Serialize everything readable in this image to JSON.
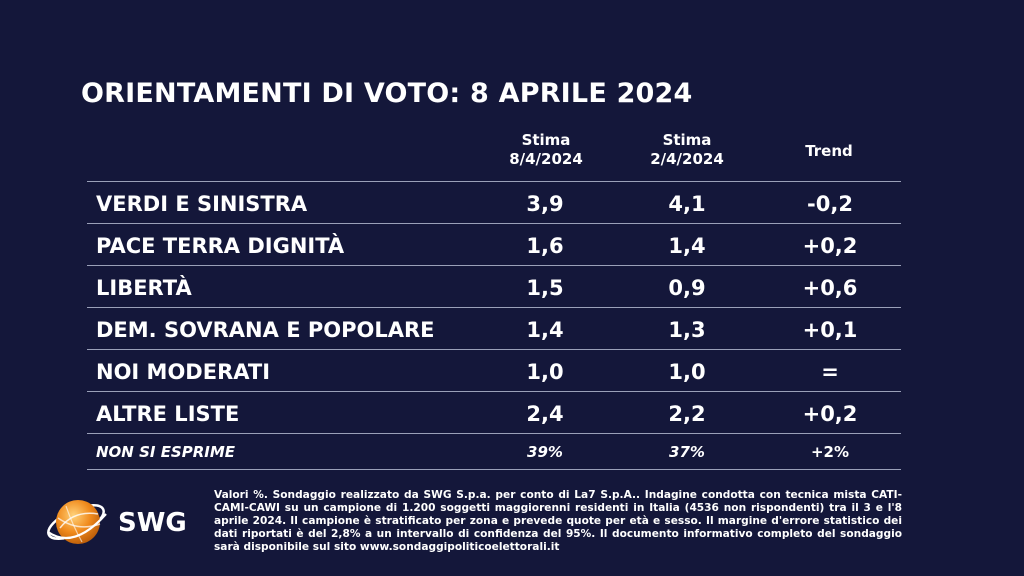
{
  "title": "ORIENTAMENTI DI VOTO: 8 APRILE 2024",
  "columns": {
    "stima_current_line1": "Stima",
    "stima_current_line2": "8/4/2024",
    "stima_prev_line1": "Stima",
    "stima_prev_line2": "2/4/2024",
    "trend": "Trend"
  },
  "rows": [
    {
      "party": "VERDI E SINISTRA",
      "current": "3,9",
      "previous": "4,1",
      "trend": "-0,2"
    },
    {
      "party": "PACE TERRA DIGNITÀ",
      "current": "1,6",
      "previous": "1,4",
      "trend": "+0,2"
    },
    {
      "party": "LIBERTÀ",
      "current": "1,5",
      "previous": "0,9",
      "trend": "+0,6"
    },
    {
      "party": "DEM. SOVRANA E POPOLARE",
      "current": "1,4",
      "previous": "1,3",
      "trend": "+0,1"
    },
    {
      "party": "NOI MODERATI",
      "current": "1,0",
      "previous": "1,0",
      "trend": "="
    },
    {
      "party": "ALTRE LISTE",
      "current": "2,4",
      "previous": "2,2",
      "trend": "+0,2"
    }
  ],
  "non_si_esprime": {
    "party": "NON SI ESPRIME",
    "current": "39%",
    "previous": "37%",
    "trend": "+2%"
  },
  "logo_text": "SWG",
  "footnote": "Valori %. Sondaggio realizzato da SWG S.p.a. per conto di La7 S.p.A.. Indagine condotta con tecnica mista CATI-CAMI-CAWI su un campione di 1.200 soggetti maggiorenni residenti in Italia (4536 non rispondenti) tra il 3 e l'8 aprile 2024. Il campione è stratificato per zona e prevede quote per età e sesso. Il margine d'errore statistico dei dati riportati è del 2,8% a un intervallo di confidenza del 95%. Il documento informativo completo del sondaggio sarà disponibile sul sito www.sondaggipoliticoelettorali.it",
  "colors": {
    "background": "#14173a",
    "text": "#ffffff",
    "logo_orange": "#f08a1c"
  }
}
